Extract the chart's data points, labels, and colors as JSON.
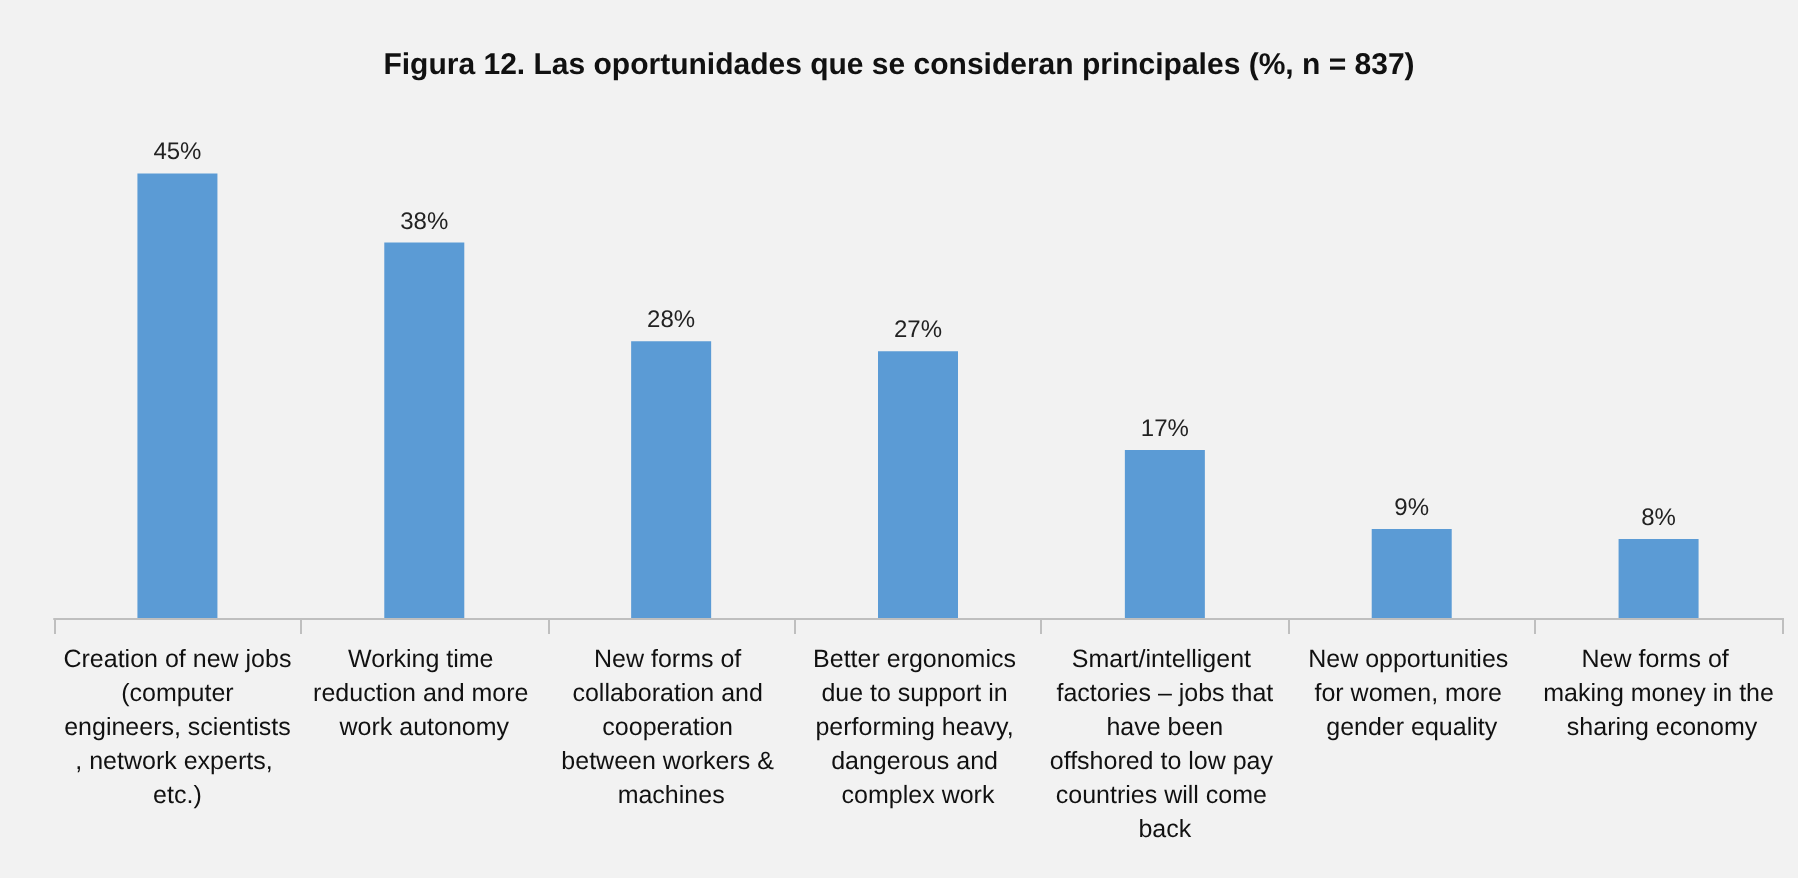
{
  "chart_data": {
    "type": "bar",
    "title": "Figura 12. Las oportunidades que se consideran principales (%, n = 837)",
    "categories": [
      "Creation of new jobs (computer engineers, scientists, network experts, etc.)",
      "Working time reduction and more work autonomy",
      "New forms of collaboration and cooperation between workers & machines",
      "Better ergonomics due to support in performing heavy, dangerous and complex work",
      "Smart/intelligent factories – jobs that have been offshored to low pay countries will come back",
      "New opportunities for women, more gender equality",
      "New forms of making money in the sharing economy"
    ],
    "values": [
      45,
      38,
      28,
      27,
      17,
      9,
      8
    ],
    "color": "#5b9bd5",
    "data_labels": true,
    "value_labels": [
      "45%",
      "38%",
      "28%",
      "27%",
      "17%",
      "9%",
      "8%"
    ]
  }
}
